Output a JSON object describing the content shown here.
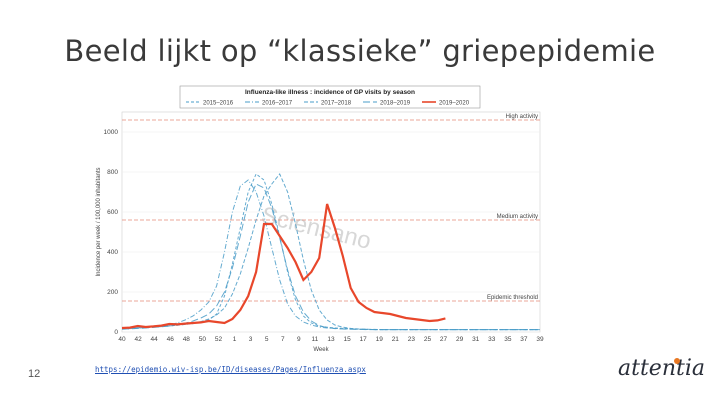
{
  "slide": {
    "title": "Beeld lijkt op “klassieke” griepepidemie",
    "page_number": "12",
    "source_url": "https://epidemio.wiv-isp.be/ID/diseases/Pages/Influenza.aspx",
    "logo_text": "attentia"
  },
  "colors": {
    "accent": "#e87722",
    "current_season": "#e8472b",
    "past_seasons": "#4a9cc8",
    "threshold": "#e58a7a"
  },
  "chart_data": {
    "type": "line",
    "title": "Influenza-like illness : incidence of GP visits by season",
    "ylabel": "Incidence per week / 100,000 inhabitants",
    "xlabel": "Week",
    "ylim": [
      0,
      1100
    ],
    "yticks": [
      0,
      200,
      400,
      600,
      800,
      1000
    ],
    "x_tick_labels": [
      "40",
      "42",
      "44",
      "46",
      "48",
      "50",
      "52",
      "1",
      "3",
      "5",
      "7",
      "9",
      "11",
      "13",
      "15",
      "17",
      "19",
      "21",
      "23",
      "25",
      "27",
      "29",
      "31",
      "33",
      "35",
      "37",
      "39"
    ],
    "legend": [
      "2015–2016",
      "2016–2017",
      "2017–2018",
      "2018–2019",
      "2019–2020"
    ],
    "watermark": "Sciensano",
    "thresholds": [
      {
        "label": "High activity",
        "value": 1060
      },
      {
        "label": "Medium activity",
        "value": 560
      },
      {
        "label": "Epidemic threshold",
        "value": 155
      }
    ],
    "series": [
      {
        "name": "2015–2016",
        "style": "dashed-light",
        "values": [
          18,
          20,
          22,
          24,
          26,
          28,
          30,
          34,
          38,
          42,
          50,
          60,
          90,
          180,
          340,
          520,
          700,
          790,
          760,
          640,
          480,
          300,
          160,
          80,
          45,
          30,
          24,
          20,
          18,
          16,
          14,
          13,
          12,
          12,
          12,
          12,
          12,
          12,
          12,
          12,
          12,
          12,
          12,
          12,
          12,
          12,
          12,
          12,
          12,
          12,
          12,
          12,
          12,
          12
        ]
      },
      {
        "name": "2016–2017",
        "style": "dashdot",
        "values": [
          16,
          18,
          20,
          22,
          25,
          28,
          35,
          45,
          60,
          80,
          110,
          150,
          230,
          400,
          600,
          730,
          760,
          700,
          580,
          420,
          260,
          140,
          80,
          50,
          35,
          25,
          20,
          18,
          16,
          15,
          14,
          13,
          12,
          12,
          12,
          12,
          12,
          12,
          12,
          12,
          12,
          12,
          12,
          12,
          12,
          12,
          12,
          12,
          12,
          12,
          12,
          12,
          12,
          12
        ]
      },
      {
        "name": "2017–2018",
        "style": "dashed",
        "values": [
          15,
          17,
          19,
          22,
          24,
          27,
          30,
          34,
          38,
          44,
          52,
          65,
          85,
          120,
          190,
          290,
          420,
          560,
          680,
          740,
          790,
          700,
          540,
          360,
          210,
          110,
          60,
          35,
          24,
          18,
          15,
          14,
          13,
          12,
          12,
          12,
          12,
          12,
          12,
          12,
          12,
          12,
          12,
          12,
          12,
          12,
          12,
          12,
          12,
          12,
          12,
          12,
          12,
          12
        ]
      },
      {
        "name": "2018–2019",
        "style": "longdash",
        "values": [
          14,
          16,
          18,
          20,
          23,
          26,
          30,
          36,
          44,
          55,
          70,
          90,
          130,
          200,
          320,
          480,
          650,
          740,
          720,
          620,
          470,
          310,
          180,
          100,
          55,
          32,
          22,
          17,
          15,
          14,
          13,
          12,
          12,
          12,
          12,
          12,
          12,
          12,
          12,
          12,
          12,
          12,
          12,
          12,
          12,
          12,
          12,
          12,
          12,
          12,
          12,
          12,
          12,
          12
        ]
      },
      {
        "name": "2019–2020",
        "style": "solid",
        "values": [
          20,
          22,
          30,
          25,
          28,
          32,
          40,
          38,
          42,
          45,
          48,
          55,
          50,
          45,
          65,
          110,
          180,
          300,
          540,
          540,
          480,
          420,
          350,
          260,
          300,
          370,
          640,
          520,
          380,
          220,
          150,
          120,
          100,
          95,
          90,
          80,
          70,
          65,
          60,
          55,
          58,
          68,
          null,
          null,
          null,
          null,
          null,
          null,
          null,
          null,
          null,
          null,
          null,
          null
        ]
      }
    ]
  }
}
